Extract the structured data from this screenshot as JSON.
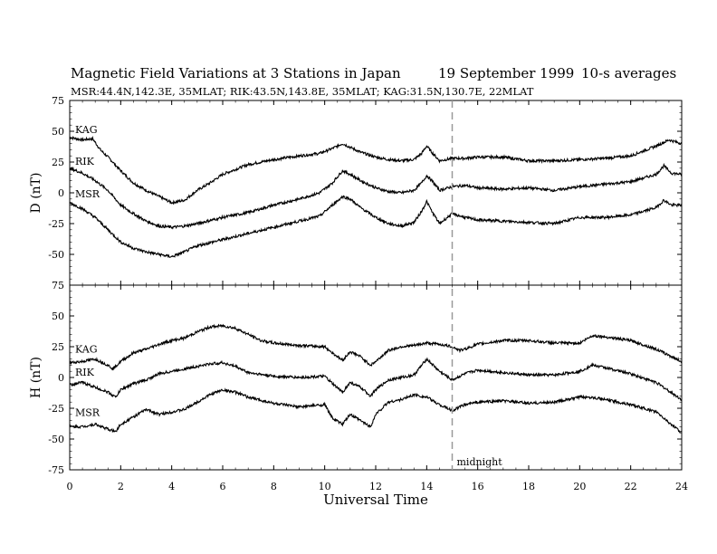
{
  "chart_data": {
    "type": "line",
    "title": "Magnetic Field Variations at 3 Stations in Japan",
    "date": "19 September 1999",
    "averaging": "10-s averages",
    "subtitle": "MSR:44.4N,142.3E, 35MLAT;   RIK:43.5N,143.8E, 35MLAT;   KAG:31.5N,130.7E, 22MLAT",
    "xlabel": "Universal Time",
    "xlim": [
      0,
      24
    ],
    "x_ticks": [
      0,
      2,
      4,
      6,
      8,
      10,
      12,
      14,
      16,
      18,
      20,
      22,
      24
    ],
    "annotation": "midnight",
    "annotation_x": 15,
    "panels": [
      {
        "ylabel": "D (nT)",
        "ylim": [
          -75,
          75
        ],
        "y_ticks": [
          75,
          50,
          25,
          0,
          -25,
          -50,
          -75
        ],
        "series": [
          {
            "name": "KAG",
            "x": [
              0,
              0.5,
              0.9,
              1.2,
              1.6,
              2.0,
              2.5,
              3.0,
              3.5,
              4.0,
              4.5,
              5.0,
              5.5,
              6.0,
              6.5,
              7.0,
              8.0,
              9.0,
              9.8,
              10.3,
              10.7,
              11.0,
              11.4,
              12.0,
              12.5,
              13.0,
              13.5,
              13.8,
              14.0,
              14.2,
              14.5,
              15.0,
              15.5,
              16.0,
              17.0,
              18.0,
              19.0,
              20.0,
              21.0,
              22.0,
              23.0,
              23.5,
              24.0
            ],
            "values": [
              45,
              43,
              44,
              35,
              27,
              18,
              8,
              2,
              -3,
              -8,
              -6,
              2,
              8,
              15,
              19,
              23,
              27,
              30,
              32,
              36,
              40,
              37,
              33,
              29,
              27,
              26,
              27,
              32,
              38,
              33,
              26,
              28,
              28,
              29,
              29,
              26,
              26,
              27,
              28,
              30,
              38,
              43,
              40
            ]
          },
          {
            "name": "RIK",
            "x": [
              0,
              0.5,
              1.0,
              1.5,
              2.0,
              2.5,
              3.0,
              3.5,
              4.0,
              4.5,
              5.0,
              6.0,
              7.0,
              8.0,
              9.0,
              9.8,
              10.3,
              10.7,
              11.0,
              11.4,
              12.0,
              12.5,
              13.0,
              13.5,
              13.8,
              14.0,
              14.2,
              14.5,
              15.0,
              15.5,
              16.0,
              17.0,
              18.0,
              19.0,
              20.0,
              21.0,
              22.0,
              23.0,
              23.3,
              23.6,
              24.0
            ],
            "values": [
              20,
              16,
              10,
              2,
              -10,
              -17,
              -23,
              -27,
              -28,
              -27,
              -25,
              -20,
              -16,
              -10,
              -5,
              0,
              8,
              18,
              15,
              10,
              4,
              1,
              0,
              2,
              8,
              14,
              10,
              2,
              5,
              6,
              4,
              3,
              4,
              2,
              5,
              7,
              9,
              15,
              22,
              16,
              15
            ]
          },
          {
            "name": "MSR",
            "x": [
              0,
              0.5,
              1.0,
              1.5,
              2.0,
              2.5,
              3.0,
              3.5,
              4.0,
              4.5,
              5.0,
              6.0,
              7.0,
              8.0,
              9.0,
              9.8,
              10.3,
              10.7,
              11.0,
              11.4,
              12.0,
              12.5,
              13.0,
              13.5,
              13.8,
              14.0,
              14.2,
              14.5,
              15.0,
              15.5,
              16.0,
              17.0,
              18.0,
              19.0,
              20.0,
              21.0,
              22.0,
              23.0,
              23.3,
              23.6,
              24.0
            ],
            "values": [
              -8,
              -13,
              -20,
              -30,
              -40,
              -45,
              -48,
              -50,
              -52,
              -48,
              -43,
              -38,
              -33,
              -28,
              -23,
              -19,
              -10,
              -3,
              -5,
              -12,
              -20,
              -25,
              -27,
              -24,
              -15,
              -7,
              -15,
              -25,
              -17,
              -20,
              -22,
              -23,
              -24,
              -25,
              -20,
              -20,
              -18,
              -12,
              -6,
              -10,
              -10
            ]
          }
        ]
      },
      {
        "ylabel": "H (nT)",
        "ylim": [
          -75,
          75
        ],
        "y_ticks": [
          75,
          50,
          25,
          0,
          -25,
          -50,
          -75
        ],
        "series": [
          {
            "name": "KAG",
            "x": [
              0,
              0.5,
              1.0,
              1.5,
              1.7,
              2.0,
              2.5,
              3.0,
              3.5,
              4.0,
              4.5,
              5.0,
              5.5,
              6.0,
              6.5,
              7.0,
              7.5,
              8.0,
              9.0,
              10.0,
              10.3,
              10.7,
              11.0,
              11.4,
              11.8,
              12.0,
              12.5,
              13.0,
              13.5,
              14.0,
              14.5,
              15.0,
              15.3,
              15.5,
              16.0,
              17.0,
              18.0,
              19.0,
              20.0,
              20.5,
              21.0,
              22.0,
              23.0,
              24.0
            ],
            "values": [
              12,
              13,
              15,
              10,
              7,
              13,
              20,
              23,
              27,
              30,
              32,
              37,
              41,
              42,
              40,
              35,
              30,
              28,
              26,
              25,
              20,
              14,
              21,
              17,
              10,
              13,
              22,
              25,
              26,
              28,
              27,
              25,
              22,
              23,
              27,
              30,
              30,
              28,
              28,
              34,
              33,
              30,
              23,
              13
            ]
          },
          {
            "name": "RIK",
            "x": [
              0,
              0.5,
              1.0,
              1.5,
              1.8,
              2.0,
              2.5,
              3.0,
              3.5,
              4.0,
              4.5,
              5.0,
              5.5,
              6.0,
              6.5,
              7.0,
              8.0,
              9.0,
              10.0,
              10.3,
              10.7,
              11.0,
              11.4,
              11.8,
              12.0,
              12.5,
              13.0,
              13.5,
              14.0,
              14.5,
              15.0,
              15.5,
              16.0,
              17.0,
              18.0,
              19.0,
              20.0,
              20.5,
              21.0,
              22.0,
              23.0,
              24.0
            ],
            "values": [
              -6,
              -4,
              -8,
              -12,
              -16,
              -10,
              -5,
              -2,
              3,
              5,
              7,
              9,
              11,
              12,
              9,
              4,
              1,
              0,
              1,
              -5,
              -12,
              -4,
              -8,
              -15,
              -10,
              -2,
              0,
              2,
              15,
              5,
              -2,
              3,
              6,
              4,
              2,
              2,
              5,
              10,
              8,
              3,
              -4,
              -18
            ]
          },
          {
            "name": "MSR",
            "x": [
              0,
              0.5,
              1.0,
              1.5,
              1.8,
              2.0,
              2.5,
              3.0,
              3.5,
              4.0,
              4.5,
              5.0,
              5.5,
              6.0,
              6.5,
              7.0,
              8.0,
              9.0,
              10.0,
              10.3,
              10.7,
              11.0,
              11.4,
              11.8,
              12.0,
              12.5,
              13.0,
              13.5,
              14.0,
              14.5,
              15.0,
              15.5,
              16.0,
              17.0,
              18.0,
              19.0,
              20.0,
              20.5,
              21.0,
              22.0,
              23.0,
              24.0
            ],
            "values": [
              -40,
              -40,
              -38,
              -42,
              -44,
              -38,
              -32,
              -26,
              -30,
              -28,
              -26,
              -20,
              -14,
              -10,
              -12,
              -16,
              -21,
              -24,
              -22,
              -33,
              -38,
              -30,
              -35,
              -40,
              -30,
              -20,
              -18,
              -14,
              -16,
              -22,
              -27,
              -22,
              -20,
              -19,
              -21,
              -20,
              -16,
              -16,
              -18,
              -22,
              -28,
              -45
            ]
          }
        ]
      }
    ]
  }
}
